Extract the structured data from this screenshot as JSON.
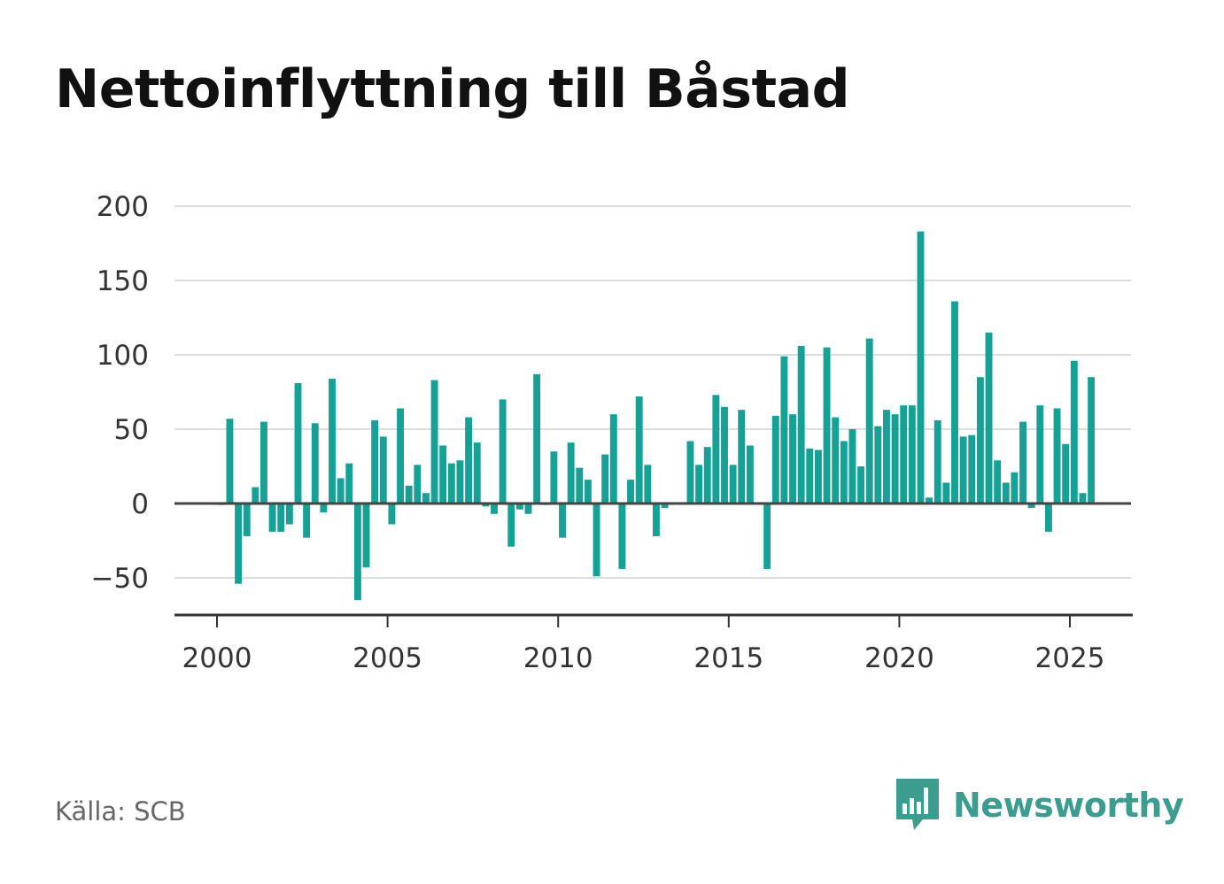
{
  "title": "Nettoinflyttning till Båstad",
  "source": "Källa: SCB",
  "brand": {
    "name": "Newsworthy",
    "icon": "bar-chart-speech-bubble-icon",
    "color": "#3c9c8d"
  },
  "chart_data": {
    "type": "bar",
    "title": "Nettoinflyttning till Båstad",
    "xlabel": "",
    "ylabel": "",
    "bar_color": "#16a196",
    "zero_line_color": "#444444",
    "grid": true,
    "ylim": [
      -75,
      200
    ],
    "xlim": [
      1998.75,
      2026.75
    ],
    "yticks": [
      200,
      150,
      100,
      50,
      0,
      -50
    ],
    "ytick_labels": [
      "200",
      "150",
      "100",
      "50",
      "0",
      "−50"
    ],
    "xticks": [
      2000,
      2005,
      2010,
      2015,
      2020,
      2025
    ],
    "xtick_labels": [
      "2000",
      "2005",
      "2010",
      "2015",
      "2020",
      "2025"
    ],
    "period": "quarterly",
    "x_start": 2000.125,
    "values": [
      -1,
      57,
      -54,
      -22,
      11,
      55,
      -19,
      -19,
      -14,
      81,
      -23,
      54,
      -6,
      84,
      17,
      27,
      -65,
      -43,
      56,
      45,
      -14,
      64,
      12,
      26,
      7,
      83,
      39,
      27,
      29,
      58,
      41,
      -2,
      -7,
      70,
      -29,
      -4,
      -7,
      87,
      -1,
      35,
      -23,
      41,
      24,
      16,
      -49,
      33,
      60,
      -44,
      16,
      72,
      26,
      -22,
      -3,
      0,
      0,
      42,
      26,
      38,
      73,
      65,
      26,
      63,
      39,
      0,
      -44,
      59,
      99,
      60,
      106,
      37,
      36,
      105,
      58,
      42,
      50,
      25,
      111,
      52,
      63,
      60,
      66,
      66,
      183,
      4,
      56,
      14,
      136,
      45,
      46,
      85,
      115,
      29,
      14,
      21,
      55,
      -3,
      66,
      -19,
      64,
      40,
      96,
      7,
      85
    ]
  }
}
